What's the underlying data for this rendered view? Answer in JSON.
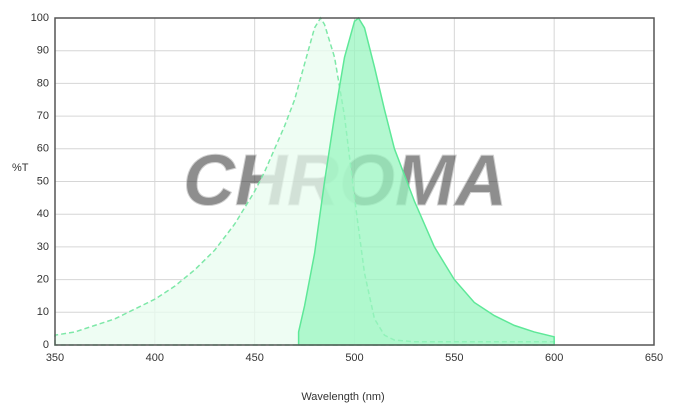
{
  "chart_data": {
    "type": "area",
    "xlabel": "Wavelength (nm)",
    "ylabel": "%T",
    "watermark": "CHROMA",
    "xlim": [
      350,
      650
    ],
    "xticks": [
      350,
      400,
      450,
      500,
      550,
      600,
      650
    ],
    "ylim": [
      0,
      100
    ],
    "yticks": [
      0,
      10,
      20,
      30,
      40,
      50,
      60,
      70,
      80,
      90,
      100
    ],
    "grid": true,
    "series": [
      {
        "color": "#7ee8a8",
        "fill": "#e8fcef",
        "dashed": true,
        "x": [
          350,
          360,
          370,
          380,
          390,
          400,
          410,
          420,
          430,
          440,
          450,
          455,
          460,
          465,
          470,
          475,
          480,
          483,
          485,
          490,
          495,
          500,
          505,
          510,
          515,
          520,
          530,
          550,
          600
        ],
        "values": [
          3,
          4,
          6,
          8,
          11,
          14,
          18,
          23,
          29,
          37,
          47,
          53,
          60,
          67,
          75,
          86,
          97,
          100,
          98,
          88,
          70,
          45,
          22,
          8,
          3,
          1.5,
          1,
          1,
          1
        ]
      },
      {
        "color": "#5ee898",
        "fill": "#9af5c0",
        "dashed": false,
        "x": [
          472,
          475,
          480,
          485,
          490,
          495,
          500,
          502,
          505,
          510,
          515,
          520,
          525,
          530,
          540,
          550,
          560,
          570,
          580,
          590,
          600
        ],
        "values": [
          4,
          12,
          28,
          50,
          70,
          88,
          99,
          100,
          97,
          85,
          72,
          60,
          52,
          44,
          30,
          20,
          13,
          9,
          6,
          4,
          2.5
        ]
      }
    ]
  }
}
